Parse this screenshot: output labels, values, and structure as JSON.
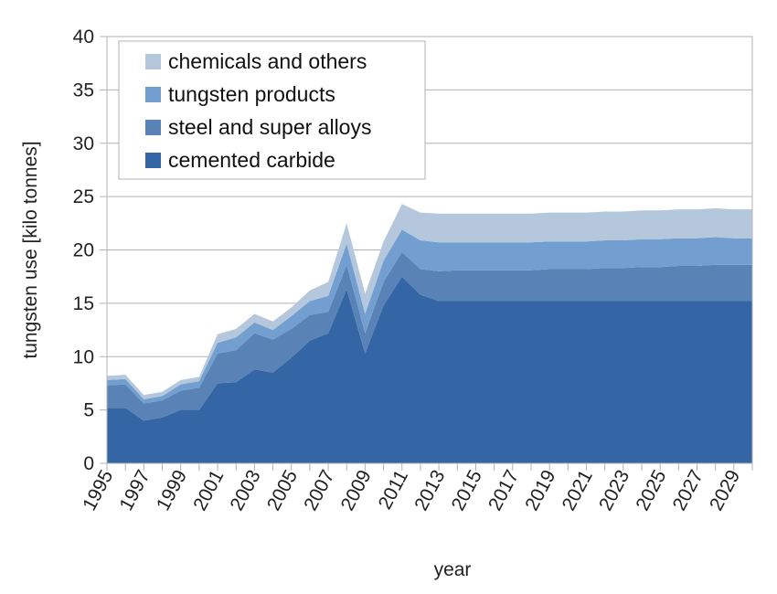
{
  "chart_data": {
    "type": "area",
    "stacked": true,
    "xlabel": "year",
    "ylabel": "tungsten use [kilo tonnes]",
    "ylim": [
      0,
      40
    ],
    "yticks": [
      0,
      5,
      10,
      15,
      20,
      25,
      30,
      35,
      40
    ],
    "xlim": [
      1995,
      2030
    ],
    "xtick_labels": [
      "1995",
      "1997",
      "1999",
      "2001",
      "2003",
      "2005",
      "2007",
      "2009",
      "2011",
      "2013",
      "2015",
      "2017",
      "2019",
      "2021",
      "2023",
      "2025",
      "2027",
      "2029"
    ],
    "grid": "horizontal",
    "legend_position": "top-left",
    "x": [
      1995,
      1996,
      1997,
      1998,
      1999,
      2000,
      2001,
      2002,
      2003,
      2004,
      2005,
      2006,
      2007,
      2008,
      2009,
      2010,
      2011,
      2012,
      2013,
      2014,
      2015,
      2016,
      2017,
      2018,
      2019,
      2020,
      2021,
      2022,
      2023,
      2024,
      2025,
      2026,
      2027,
      2028,
      2029,
      2030
    ],
    "series": [
      {
        "name": "cemented carbide",
        "color": "#3465a4",
        "values": [
          5.2,
          5.2,
          4.0,
          4.3,
          5.0,
          5.0,
          7.5,
          7.6,
          8.8,
          8.5,
          9.9,
          11.5,
          12.2,
          16.3,
          10.3,
          14.8,
          17.5,
          15.8,
          15.2,
          15.2,
          15.2,
          15.2,
          15.2,
          15.2,
          15.2,
          15.2,
          15.2,
          15.2,
          15.2,
          15.2,
          15.2,
          15.2,
          15.2,
          15.2,
          15.2,
          15.2
        ]
      },
      {
        "name": "steel and super alloys",
        "color": "#5982b6",
        "values": [
          2.1,
          2.2,
          1.6,
          1.6,
          1.8,
          2.1,
          2.8,
          3.0,
          3.4,
          3.1,
          2.7,
          2.4,
          2.0,
          2.3,
          1.9,
          2.2,
          2.3,
          2.4,
          2.8,
          2.9,
          2.9,
          2.9,
          2.9,
          2.9,
          3.0,
          3.0,
          3.0,
          3.1,
          3.1,
          3.2,
          3.2,
          3.3,
          3.3,
          3.4,
          3.4,
          3.4
        ]
      },
      {
        "name": "tungsten products",
        "color": "#729fcf",
        "values": [
          0.5,
          0.5,
          0.4,
          0.4,
          0.6,
          0.6,
          1.0,
          1.2,
          1.0,
          0.9,
          1.2,
          1.3,
          1.5,
          2.0,
          1.8,
          2.0,
          2.1,
          2.7,
          2.7,
          2.6,
          2.6,
          2.6,
          2.6,
          2.6,
          2.6,
          2.6,
          2.6,
          2.6,
          2.6,
          2.6,
          2.6,
          2.6,
          2.6,
          2.6,
          2.5,
          2.5
        ]
      },
      {
        "name": "chemicals and others",
        "color": "#b4c7dc",
        "values": [
          0.4,
          0.4,
          0.4,
          0.4,
          0.4,
          0.4,
          0.8,
          0.8,
          0.8,
          0.8,
          0.8,
          1.0,
          1.3,
          1.9,
          1.9,
          1.8,
          2.4,
          2.6,
          2.7,
          2.7,
          2.7,
          2.7,
          2.7,
          2.7,
          2.7,
          2.7,
          2.7,
          2.7,
          2.7,
          2.7,
          2.7,
          2.7,
          2.7,
          2.7,
          2.7,
          2.7
        ]
      }
    ],
    "legend_order": [
      "chemicals and others",
      "tungsten products",
      "steel and super alloys",
      "cemented carbide"
    ]
  }
}
